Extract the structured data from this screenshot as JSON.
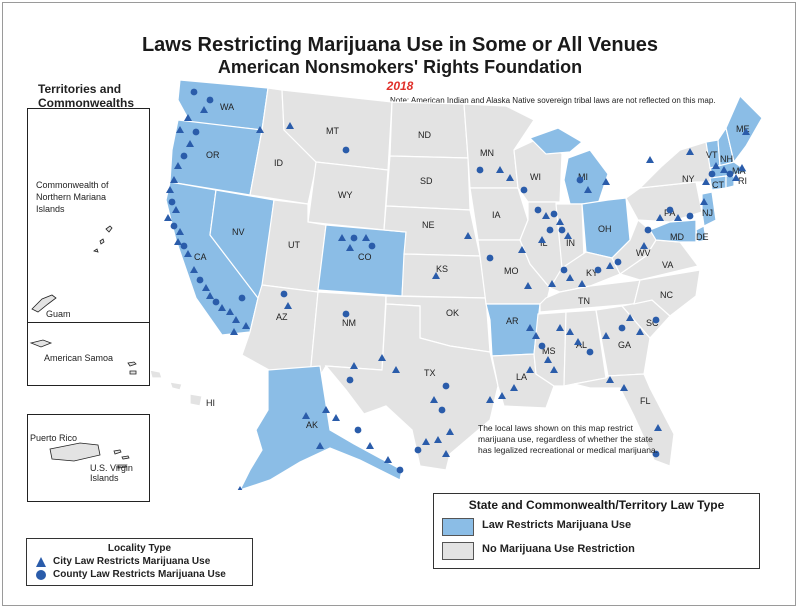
{
  "header": {
    "title": "Laws Restricting Marijuana Use in Some or All Venues",
    "subtitle": "American Nonsmokers' Rights Foundation",
    "year": "2018",
    "note": "Note: American Indian and Alaska Native sovereign tribal laws are not reflected on this map."
  },
  "territories": {
    "title_line1": "Territories and",
    "title_line2": "Commonwealths",
    "cnmi_line1": "Commonwealth of",
    "cnmi_line2": "Northern Mariana",
    "cnmi_line3": "Islands",
    "guam": "Guam",
    "american_samoa": "American Samoa",
    "puerto_rico": "Puerto Rico",
    "usvi": "U.S. Virgin Islands"
  },
  "map_note": "The local laws shown on this map restrict marijuana use, regardless of whether the state has legalized recreational or medical marijuana.",
  "legend_state": {
    "title": "State and Commonwealth/Territory Law Type",
    "items": [
      {
        "label": "Law Restricts Marijuana Use",
        "color": "#8bbde6"
      },
      {
        "label": "No Marijuana Use Restriction",
        "color": "#e3e3e3"
      }
    ]
  },
  "legend_locality": {
    "title": "Locality Type",
    "city": "City Law Restricts Marijuana Use",
    "county": "County Law Restricts Marijuana Use",
    "marker_color": "#2a5caa"
  },
  "colors": {
    "restricts": "#8bbde6",
    "none": "#e3e3e3",
    "border": "#ffffff",
    "marker": "#2a5caa"
  },
  "states": {
    "WA": "WA",
    "OR": "OR",
    "CA": "CA",
    "NV": "NV",
    "ID": "ID",
    "MT": "MT",
    "WY": "WY",
    "UT": "UT",
    "CO": "CO",
    "AZ": "AZ",
    "NM": "NM",
    "ND": "ND",
    "SD": "SD",
    "NE": "NE",
    "KS": "KS",
    "OK": "OK",
    "TX": "TX",
    "MN": "MN",
    "IA": "IA",
    "MO": "MO",
    "AR": "AR",
    "LA": "LA",
    "WI": "WI",
    "IL": "IL",
    "MI": "MI",
    "IN": "IN",
    "OH": "OH",
    "KY": "KY",
    "TN": "TN",
    "MS": "MS",
    "AL": "AL",
    "GA": "GA",
    "FL": "FL",
    "SC": "SC",
    "NC": "NC",
    "VA": "VA",
    "WV": "WV",
    "PA": "PA",
    "NY": "NY",
    "VT": "VT",
    "NH": "NH",
    "ME": "ME",
    "MA": "MA",
    "NJ": "NJ",
    "MD": "MD",
    "DE": "DE",
    "RI": "RI",
    "CT": "CT",
    "AK": "AK",
    "HI": "HI"
  }
}
